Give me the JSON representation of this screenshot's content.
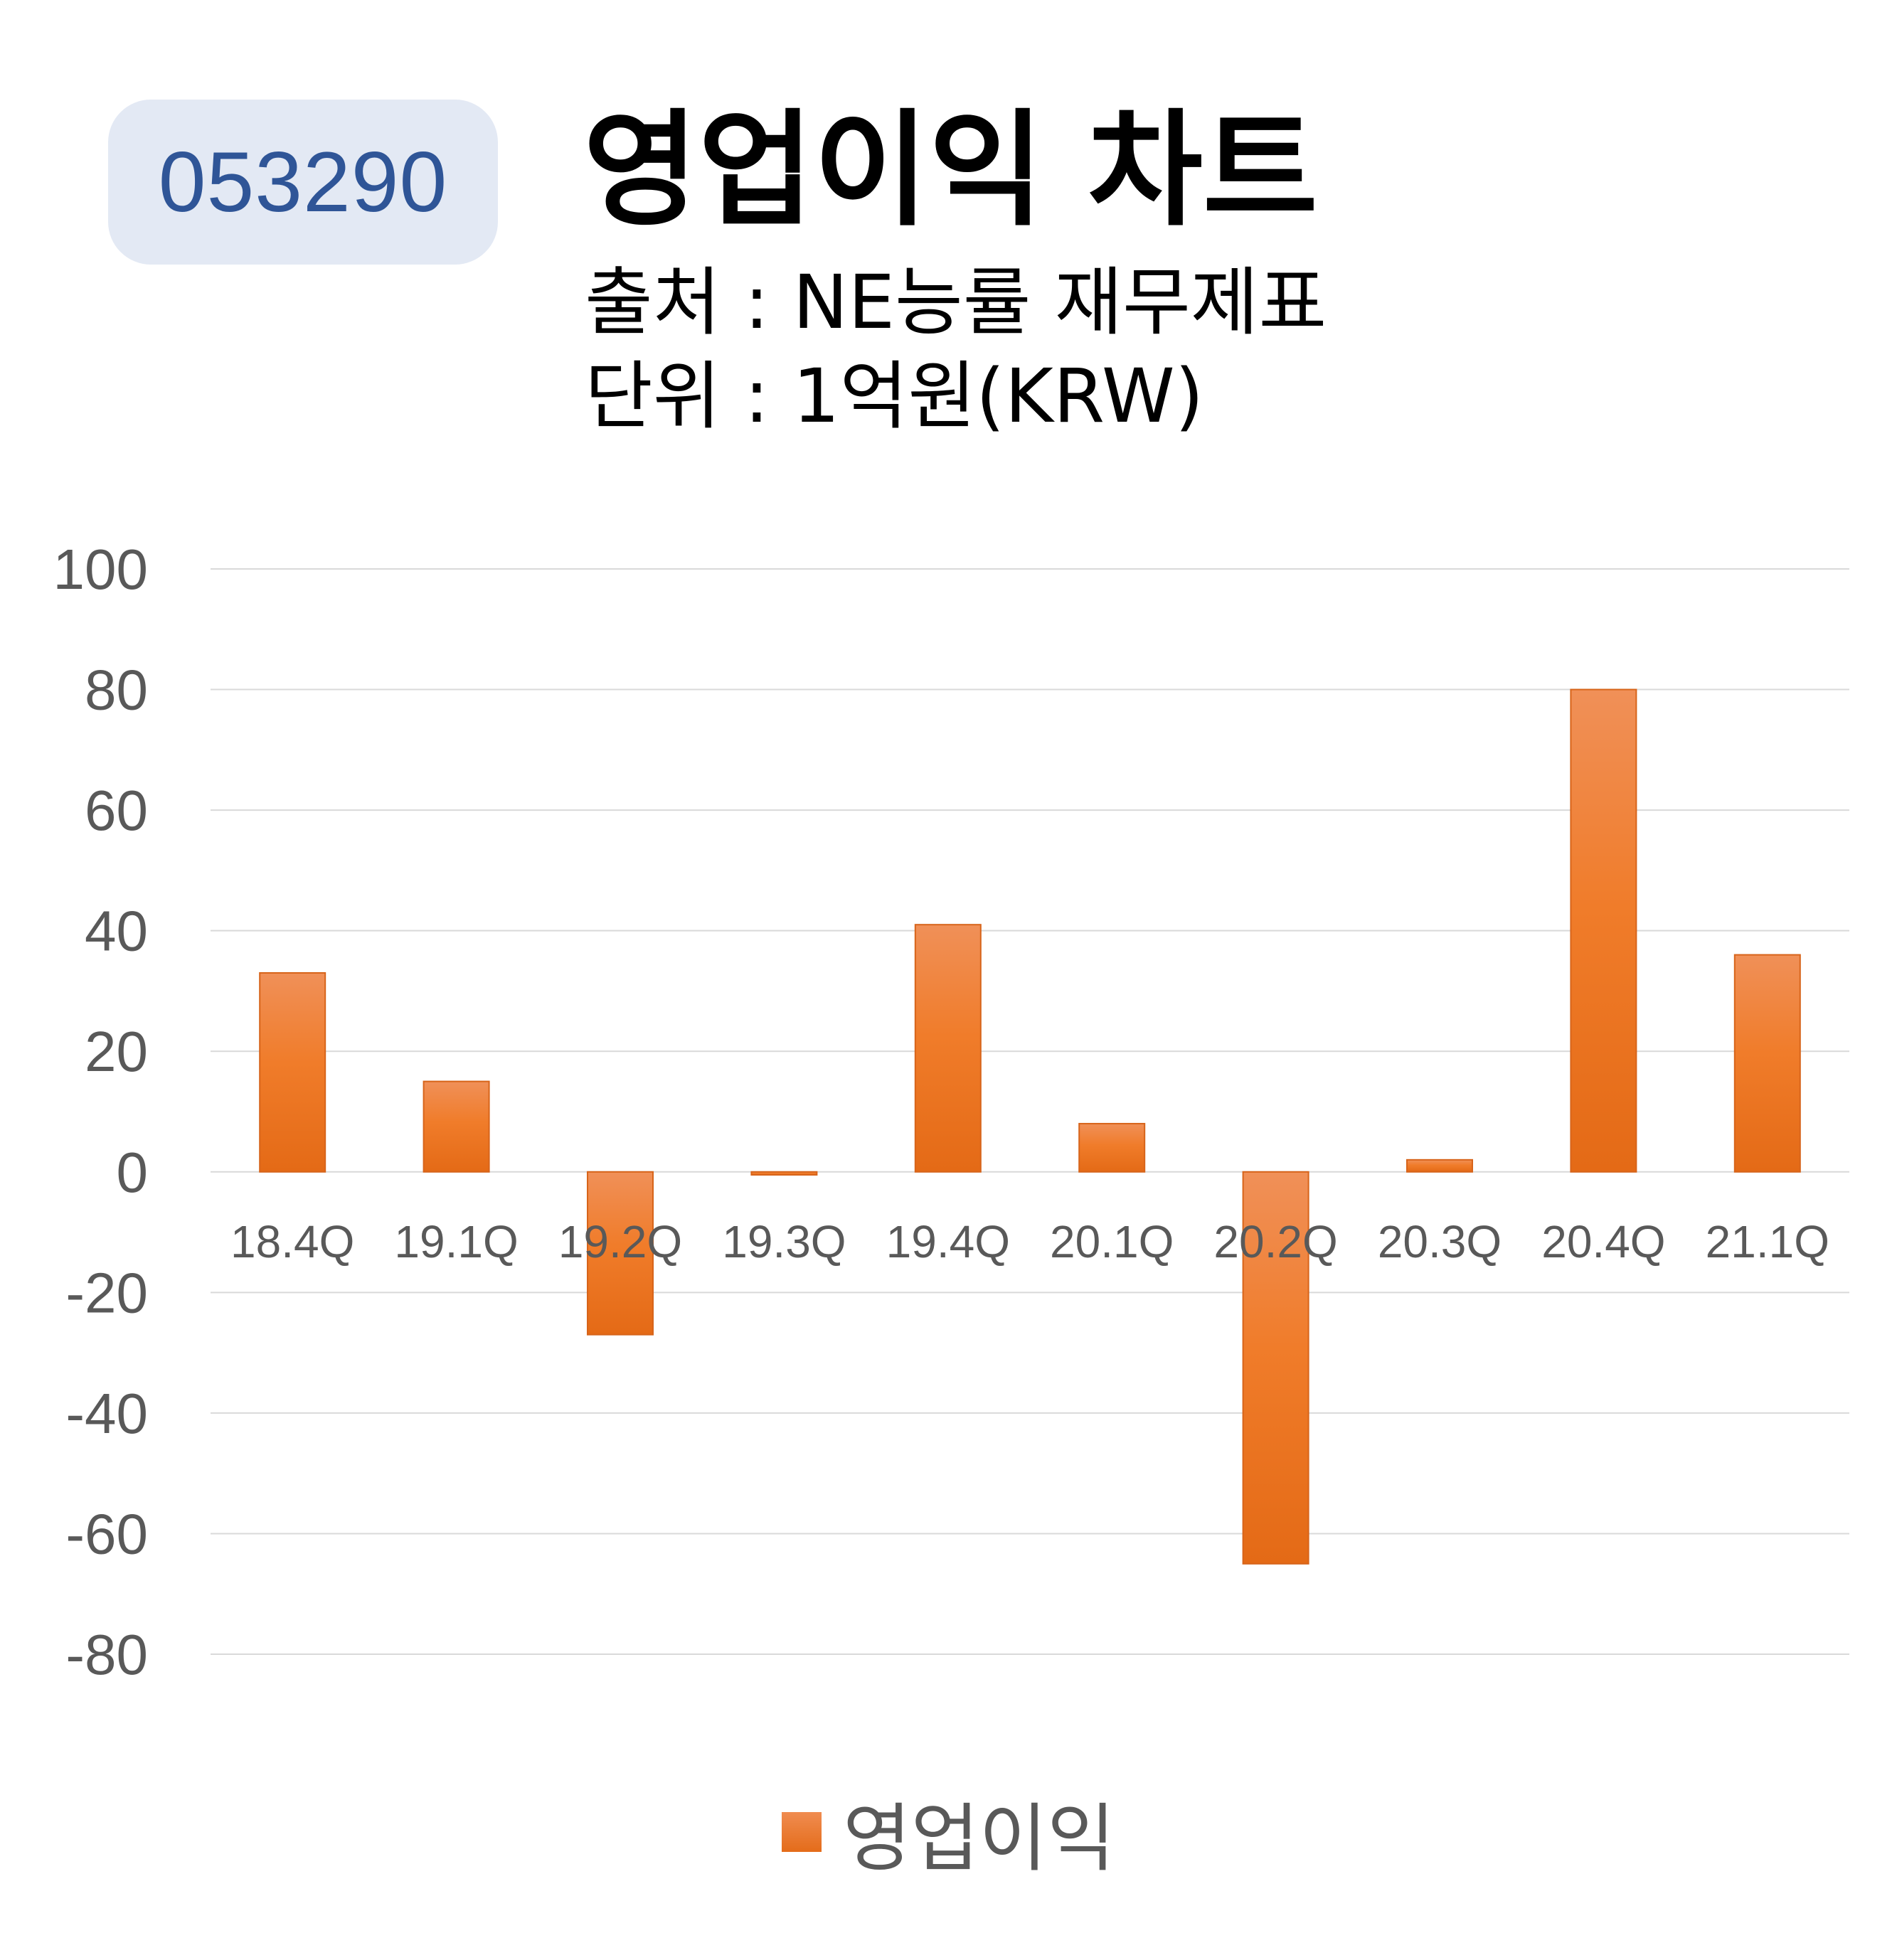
{
  "badge": {
    "code": "053290"
  },
  "header": {
    "title": "영업이익 차트",
    "source": "출처 : NE능률 재무제표",
    "unit": "단위 : 1억원(KRW)"
  },
  "legend": {
    "label": "영업이익"
  },
  "colors": {
    "bar_top": "#f09058",
    "bar_bottom": "#e46a16",
    "grid": "#d9d9d9",
    "tick": "#595959",
    "badge_bg": "#e3e9f4",
    "badge_text": "#2f5597"
  },
  "chart_data": {
    "type": "bar",
    "categories": [
      "18.4Q",
      "19.1Q",
      "19.2Q",
      "19.3Q",
      "19.4Q",
      "20.1Q",
      "20.2Q",
      "20.3Q",
      "20.4Q",
      "21.1Q"
    ],
    "series": [
      {
        "name": "영업이익",
        "values": [
          33,
          15,
          -27,
          -0.5,
          41,
          8,
          -65,
          2,
          80,
          36
        ]
      }
    ],
    "ylim": [
      -80,
      100
    ],
    "yticks": [
      100,
      80,
      60,
      40,
      20,
      0,
      -20,
      -40,
      -60,
      -80
    ],
    "grid": true,
    "legend": "bottom"
  }
}
